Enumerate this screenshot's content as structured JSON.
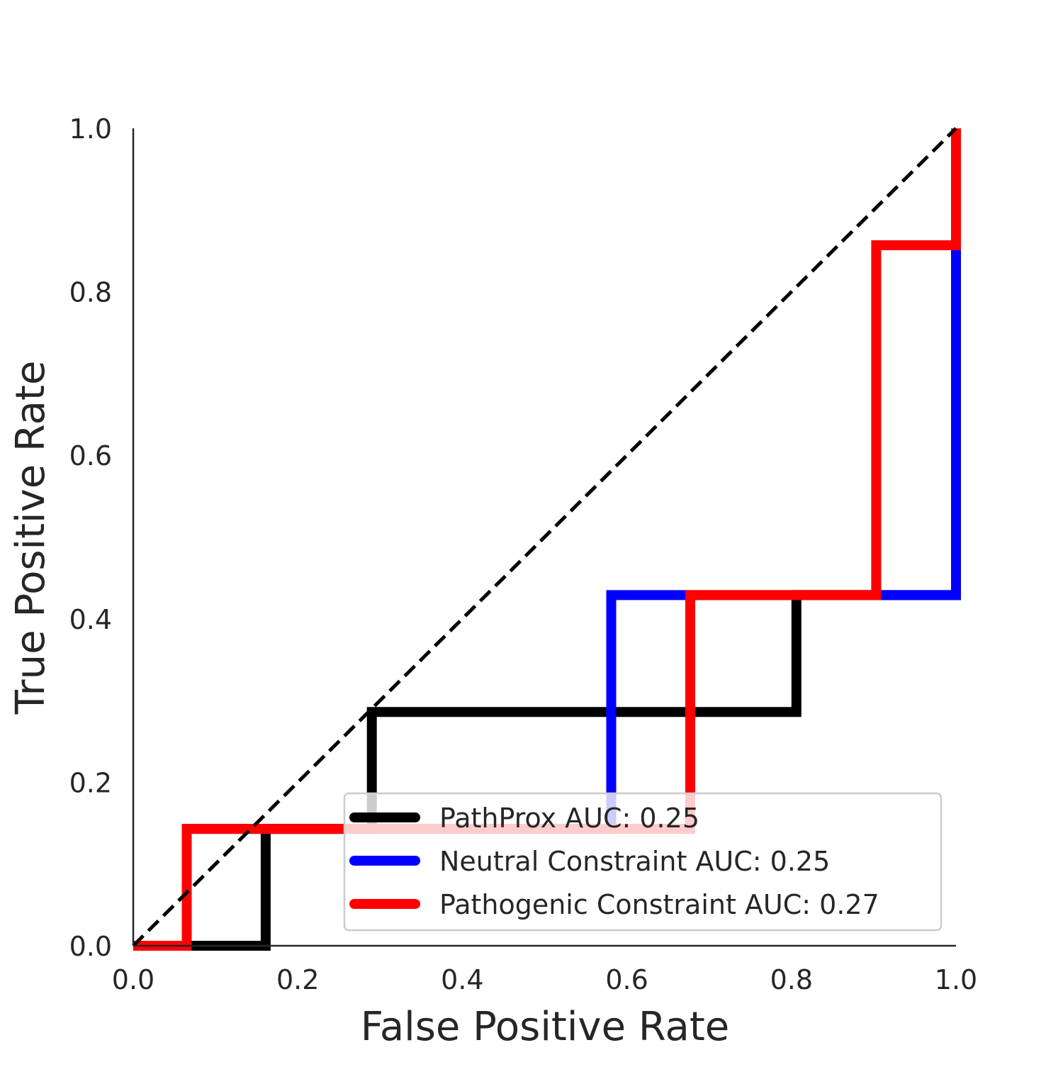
{
  "chart_data": {
    "type": "line",
    "title": "",
    "xlabel": "False Positive Rate",
    "ylabel": "True Positive Rate",
    "xlim": [
      0.0,
      1.0
    ],
    "ylim": [
      0.0,
      1.0
    ],
    "x_ticks": [
      "0.0",
      "0.2",
      "0.4",
      "0.6",
      "0.8",
      "1.0"
    ],
    "y_ticks": [
      "0.0",
      "0.2",
      "0.4",
      "0.6",
      "0.8",
      "1.0"
    ],
    "grid": false,
    "legend_position": "lower-right",
    "reference_line": {
      "style": "dashed",
      "color": "#000000",
      "x": [
        0.0,
        1.0
      ],
      "y": [
        0.0,
        1.0
      ]
    },
    "series": [
      {
        "name": "PathProx AUC:  0.25",
        "color": "#000000",
        "x": [
          0.0,
          0.0,
          0.161,
          0.161,
          0.29,
          0.29,
          0.806,
          0.806,
          1.0,
          1.0
        ],
        "y": [
          0.0,
          0.0,
          0.0,
          0.143,
          0.143,
          0.286,
          0.286,
          0.429,
          0.429,
          1.0
        ]
      },
      {
        "name": "Neutral Constraint AUC:  0.25",
        "color": "#0000ff",
        "x": [
          0.0,
          0.065,
          0.065,
          0.581,
          0.581,
          1.0,
          1.0
        ],
        "y": [
          0.0,
          0.0,
          0.143,
          0.143,
          0.429,
          0.429,
          1.0
        ]
      },
      {
        "name": "Pathogenic Constraint AUC:  0.27",
        "color": "#ff0000",
        "x": [
          0.0,
          0.065,
          0.065,
          0.677,
          0.677,
          0.903,
          0.903,
          1.0,
          1.0
        ],
        "y": [
          0.0,
          0.0,
          0.143,
          0.143,
          0.429,
          0.429,
          0.857,
          0.857,
          1.0
        ]
      }
    ]
  }
}
